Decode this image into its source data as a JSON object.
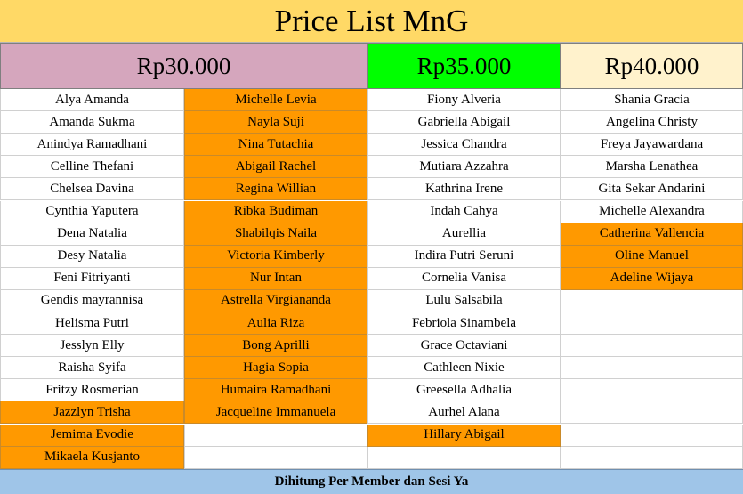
{
  "title": "Price List MnG",
  "colors": {
    "title_bg": "#ffd966",
    "tier1_bg": "#d5a6bd",
    "tier2_bg": "#00ff00",
    "tier3_bg": "#fff2cc",
    "highlight": "#ff9900",
    "footer_bg": "#9fc5e8"
  },
  "tiers": [
    {
      "price": "Rp30.000",
      "columns": [
        [
          {
            "name": "Alya Amanda",
            "hl": false
          },
          {
            "name": "Amanda Sukma",
            "hl": false
          },
          {
            "name": "Anindya Ramadhani",
            "hl": false
          },
          {
            "name": "Celline Thefani",
            "hl": false
          },
          {
            "name": "Chelsea Davina",
            "hl": false
          },
          {
            "name": "Cynthia Yaputera",
            "hl": false
          },
          {
            "name": "Dena Natalia",
            "hl": false
          },
          {
            "name": "Desy Natalia",
            "hl": false
          },
          {
            "name": "Feni Fitriyanti",
            "hl": false
          },
          {
            "name": "Gendis mayrannisa",
            "hl": false
          },
          {
            "name": "Helisma Putri",
            "hl": false
          },
          {
            "name": "Jesslyn Elly",
            "hl": false
          },
          {
            "name": "Raisha Syifa",
            "hl": false
          },
          {
            "name": "Fritzy Rosmerian",
            "hl": false
          },
          {
            "name": "Jazzlyn Trisha",
            "hl": true
          },
          {
            "name": "Jemima Evodie",
            "hl": true
          },
          {
            "name": "Mikaela Kusjanto",
            "hl": true
          }
        ],
        [
          {
            "name": "Michelle Levia",
            "hl": true
          },
          {
            "name": "Nayla Suji",
            "hl": true
          },
          {
            "name": "Nina Tutachia",
            "hl": true
          },
          {
            "name": "Abigail Rachel",
            "hl": true
          },
          {
            "name": "Regina Willian",
            "hl": true
          },
          {
            "name": "Ribka Budiman",
            "hl": true
          },
          {
            "name": "Shabilqis Naila",
            "hl": true
          },
          {
            "name": "Victoria Kimberly",
            "hl": true
          },
          {
            "name": "Nur Intan",
            "hl": true
          },
          {
            "name": "Astrella Virgiananda",
            "hl": true
          },
          {
            "name": "Aulia Riza",
            "hl": true
          },
          {
            "name": "Bong Aprilli",
            "hl": true
          },
          {
            "name": "Hagia Sopia",
            "hl": true
          },
          {
            "name": "Humaira Ramadhani",
            "hl": true
          },
          {
            "name": "Jacqueline Immanuela",
            "hl": true
          },
          {
            "name": "",
            "hl": false
          },
          {
            "name": "",
            "hl": false
          }
        ]
      ]
    },
    {
      "price": "Rp35.000",
      "columns": [
        [
          {
            "name": "Fiony Alveria",
            "hl": false
          },
          {
            "name": "Gabriella Abigail",
            "hl": false
          },
          {
            "name": "Jessica Chandra",
            "hl": false
          },
          {
            "name": "Mutiara Azzahra",
            "hl": false
          },
          {
            "name": "Kathrina Irene",
            "hl": false
          },
          {
            "name": "Indah Cahya",
            "hl": false
          },
          {
            "name": "Aurellia",
            "hl": false
          },
          {
            "name": "Indira Putri Seruni",
            "hl": false
          },
          {
            "name": "Cornelia Vanisa",
            "hl": false
          },
          {
            "name": "Lulu Salsabila",
            "hl": false
          },
          {
            "name": "Febriola Sinambela",
            "hl": false
          },
          {
            "name": "Grace Octaviani",
            "hl": false
          },
          {
            "name": "Cathleen Nixie",
            "hl": false
          },
          {
            "name": "Greesella Adhalia",
            "hl": false
          },
          {
            "name": "Aurhel Alana",
            "hl": false
          },
          {
            "name": "Hillary Abigail",
            "hl": true
          },
          {
            "name": "",
            "hl": false
          }
        ]
      ]
    },
    {
      "price": "Rp40.000",
      "columns": [
        [
          {
            "name": "Shania Gracia",
            "hl": false
          },
          {
            "name": "Angelina Christy",
            "hl": false
          },
          {
            "name": "Freya Jayawardana",
            "hl": false
          },
          {
            "name": "Marsha Lenathea",
            "hl": false
          },
          {
            "name": "Gita Sekar Andarini",
            "hl": false
          },
          {
            "name": "Michelle Alexandra",
            "hl": false
          },
          {
            "name": "Catherina Vallencia",
            "hl": true
          },
          {
            "name": "Oline Manuel",
            "hl": true
          },
          {
            "name": "Adeline Wijaya",
            "hl": true
          },
          {
            "name": "",
            "hl": false
          },
          {
            "name": "",
            "hl": false
          },
          {
            "name": "",
            "hl": false
          },
          {
            "name": "",
            "hl": false
          },
          {
            "name": "",
            "hl": false
          },
          {
            "name": "",
            "hl": false
          },
          {
            "name": "",
            "hl": false
          },
          {
            "name": "",
            "hl": false
          }
        ]
      ]
    }
  ],
  "footer": "Dihitung Per Member dan Sesi Ya"
}
